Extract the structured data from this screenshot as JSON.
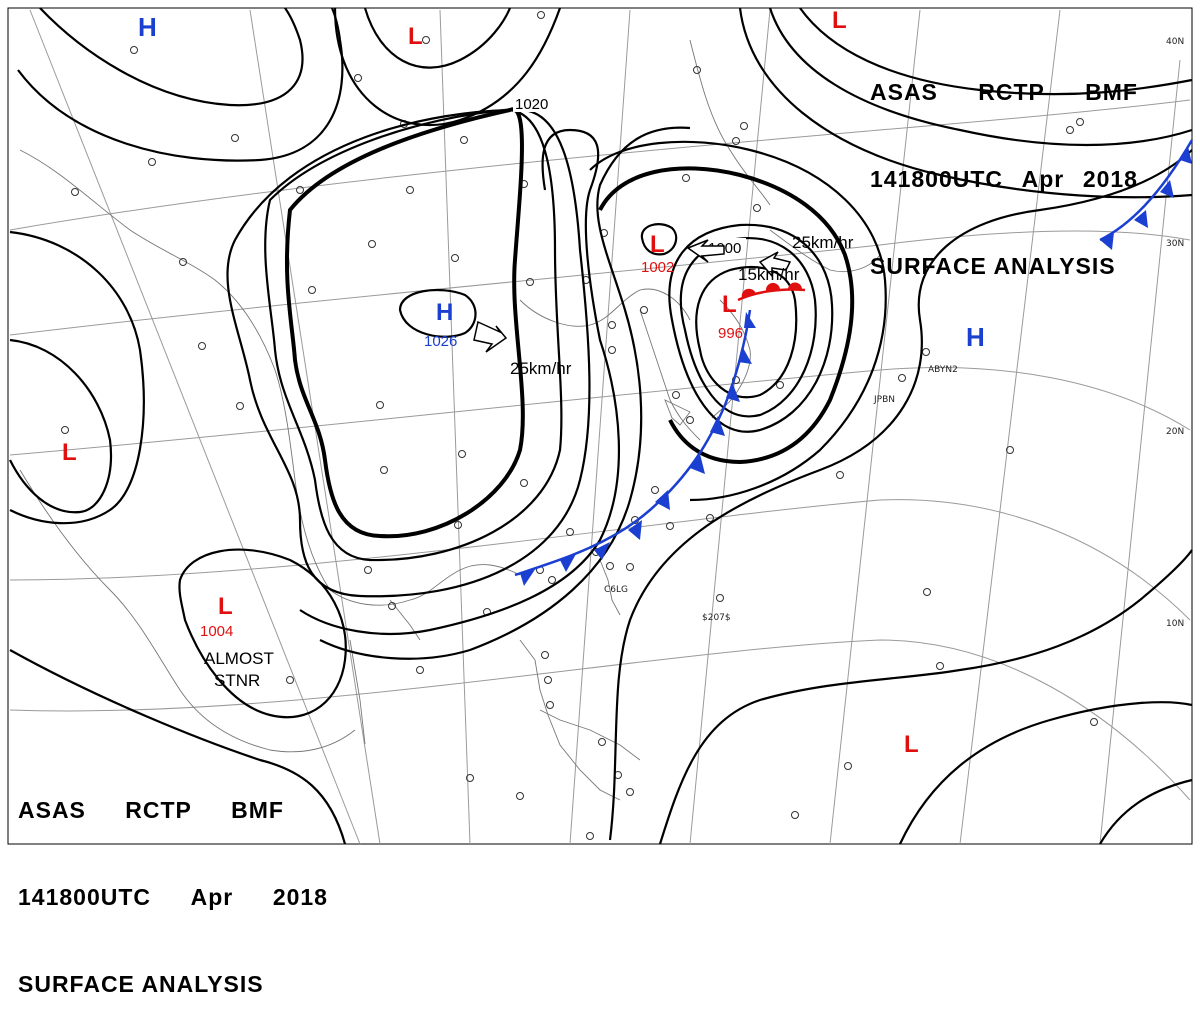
{
  "header": {
    "line1": [
      "ASAS",
      "RCTP",
      "BMF"
    ],
    "line2": [
      "141800UTC",
      "Apr",
      "2018"
    ],
    "line3": "SURFACE ANALYSIS"
  },
  "latitude_labels": [
    "40N",
    "30N",
    "20N",
    "10N"
  ],
  "isobar_labels": [
    "1020",
    "1000"
  ],
  "pressure_centers": [
    {
      "type": "H",
      "value": "",
      "color": "#1a3fd1"
    },
    {
      "type": "H",
      "value": "1026",
      "color": "#1a3fd1"
    },
    {
      "type": "H",
      "value": "",
      "color": "#1a3fd1"
    },
    {
      "type": "L",
      "value": "",
      "color": "#e01010"
    },
    {
      "type": "L",
      "value": "",
      "color": "#e01010"
    },
    {
      "type": "L",
      "value": "1002",
      "color": "#e01010"
    },
    {
      "type": "L",
      "value": "996",
      "color": "#e01010"
    },
    {
      "type": "L",
      "value": "",
      "color": "#e01010"
    },
    {
      "type": "L",
      "value": "1004",
      "color": "#e01010"
    },
    {
      "type": "L",
      "value": "",
      "color": "#e01010"
    }
  ],
  "motion_labels": [
    "25km/hr",
    "25km/hr",
    "15km/hr"
  ],
  "annotation": {
    "line1": "ALMOST",
    "line2": "STNR"
  },
  "station_ids": [
    "JPBN",
    "ABYN2",
    "C6LG",
    "$207$"
  ],
  "colors": {
    "cold_front": "#1a3fd1",
    "warm_front": "#e01010",
    "high": "#1a3fd1",
    "low": "#e01010"
  }
}
